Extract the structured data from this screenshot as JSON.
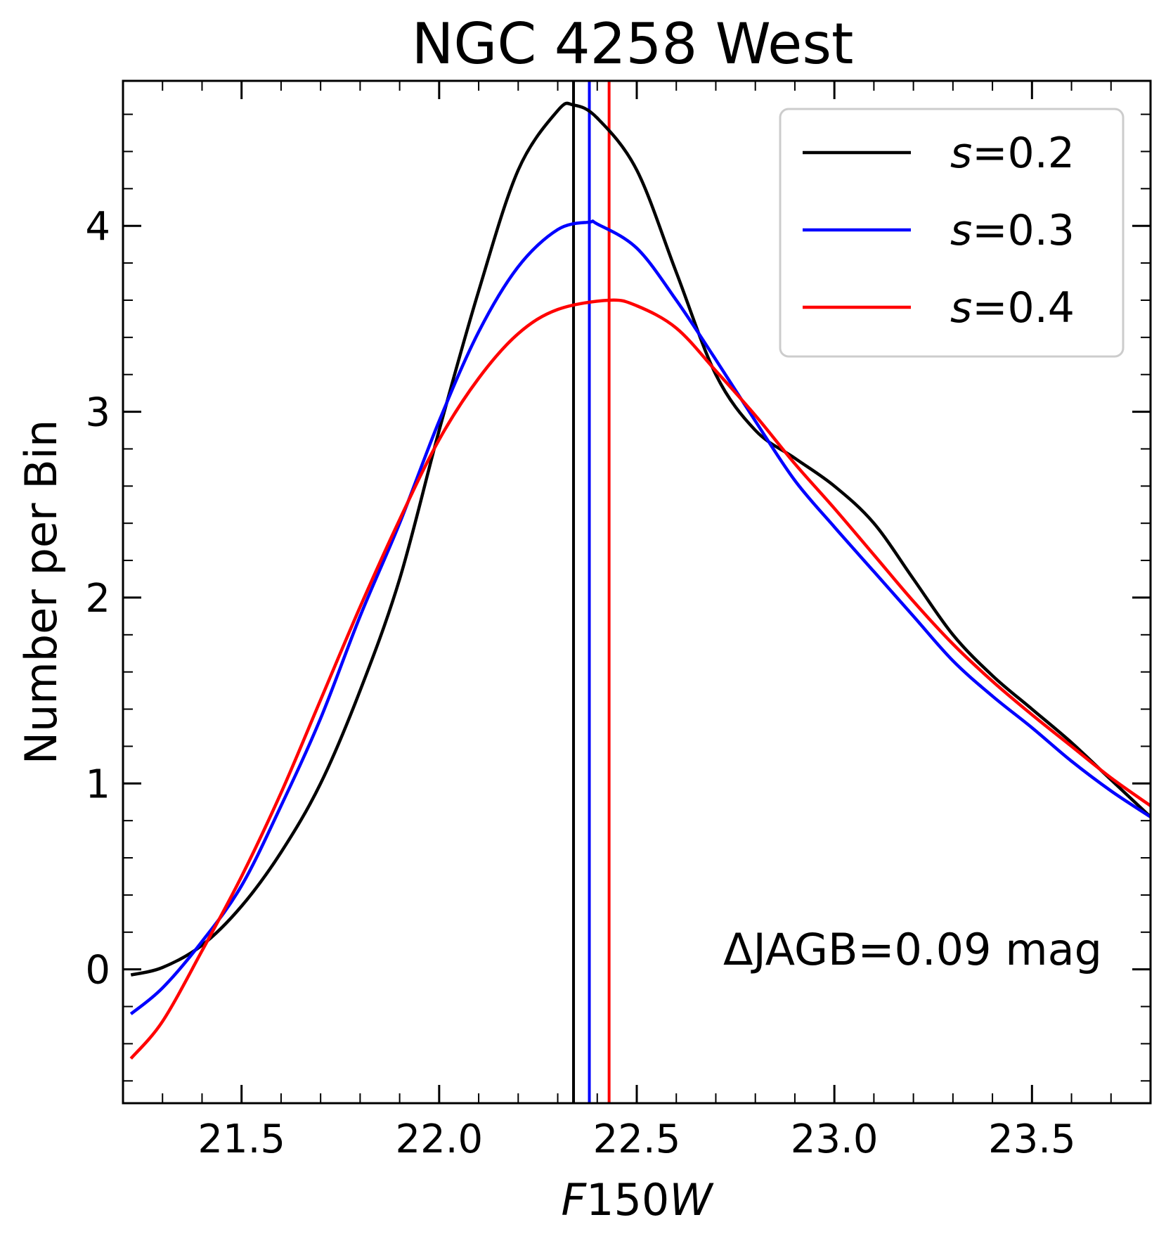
{
  "chart_data": {
    "type": "line",
    "title": "NGC 4258 West",
    "xlabel": "F150W",
    "xlabel_parts": {
      "italic_prefix": "F",
      "number": "150",
      "italic_suffix": "W"
    },
    "ylabel": "Number per Bin",
    "xlim": [
      21.2,
      23.8
    ],
    "ylim": [
      -0.72,
      4.78
    ],
    "x_ticks": [
      21.5,
      22.0,
      22.5,
      23.0,
      23.5
    ],
    "x_tick_labels": [
      "21.5",
      "22.0",
      "22.5",
      "23.0",
      "23.5"
    ],
    "y_ticks": [
      0,
      1,
      2,
      3,
      4
    ],
    "y_tick_labels": [
      "0",
      "1",
      "2",
      "3",
      "4"
    ],
    "grid": false,
    "legend_position": "top-right",
    "annotation": "ΔJAGB=0.09 mag",
    "colors": {
      "s02": "#000000",
      "s03": "#0000ff",
      "s04": "#ff0000"
    },
    "series": [
      {
        "name": "s=0.2",
        "legend_symbol": "s",
        "legend_value": "=0.2",
        "color": "#000000",
        "peak_mag": 22.34,
        "x": [
          21.22,
          21.3,
          21.4,
          21.5,
          21.6,
          21.7,
          21.8,
          21.9,
          22.0,
          22.1,
          22.2,
          22.3,
          22.34,
          22.4,
          22.5,
          22.6,
          22.7,
          22.8,
          22.9,
          23.0,
          23.1,
          23.2,
          23.3,
          23.4,
          23.5,
          23.6,
          23.7,
          23.8
        ],
        "y": [
          -0.03,
          0.01,
          0.13,
          0.34,
          0.63,
          1.0,
          1.5,
          2.1,
          2.9,
          3.65,
          4.3,
          4.62,
          4.65,
          4.58,
          4.3,
          3.75,
          3.2,
          2.9,
          2.75,
          2.6,
          2.4,
          2.1,
          1.8,
          1.58,
          1.4,
          1.22,
          1.02,
          0.82
        ]
      },
      {
        "name": "s=0.3",
        "legend_symbol": "s",
        "legend_value": "=0.3",
        "color": "#0000ff",
        "peak_mag": 22.38,
        "x": [
          21.22,
          21.3,
          21.4,
          21.5,
          21.6,
          21.7,
          21.8,
          21.9,
          22.0,
          22.1,
          22.2,
          22.3,
          22.38,
          22.4,
          22.5,
          22.6,
          22.7,
          22.8,
          22.9,
          23.0,
          23.1,
          23.2,
          23.3,
          23.4,
          23.5,
          23.6,
          23.7,
          23.8
        ],
        "y": [
          -0.24,
          -0.1,
          0.15,
          0.45,
          0.88,
          1.35,
          1.9,
          2.4,
          2.95,
          3.43,
          3.78,
          3.98,
          4.02,
          4.01,
          3.88,
          3.6,
          3.28,
          2.95,
          2.63,
          2.38,
          2.14,
          1.9,
          1.66,
          1.47,
          1.3,
          1.12,
          0.96,
          0.82
        ]
      },
      {
        "name": "s=0.4",
        "legend_symbol": "s",
        "legend_value": "=0.4",
        "color": "#ff0000",
        "peak_mag": 22.43,
        "x": [
          21.22,
          21.3,
          21.4,
          21.5,
          21.6,
          21.7,
          21.8,
          21.9,
          22.0,
          22.1,
          22.2,
          22.3,
          22.43,
          22.5,
          22.6,
          22.7,
          22.8,
          22.9,
          23.0,
          23.1,
          23.2,
          23.3,
          23.4,
          23.5,
          23.6,
          23.7,
          23.8
        ],
        "y": [
          -0.48,
          -0.28,
          0.1,
          0.5,
          0.95,
          1.45,
          1.95,
          2.42,
          2.85,
          3.18,
          3.42,
          3.55,
          3.6,
          3.57,
          3.45,
          3.22,
          2.98,
          2.72,
          2.48,
          2.23,
          1.98,
          1.75,
          1.55,
          1.37,
          1.2,
          1.03,
          0.88
        ]
      }
    ],
    "vertical_lines": [
      {
        "x": 22.34,
        "color": "#000000"
      },
      {
        "x": 22.38,
        "color": "#0000ff"
      },
      {
        "x": 22.43,
        "color": "#ff0000"
      }
    ]
  }
}
